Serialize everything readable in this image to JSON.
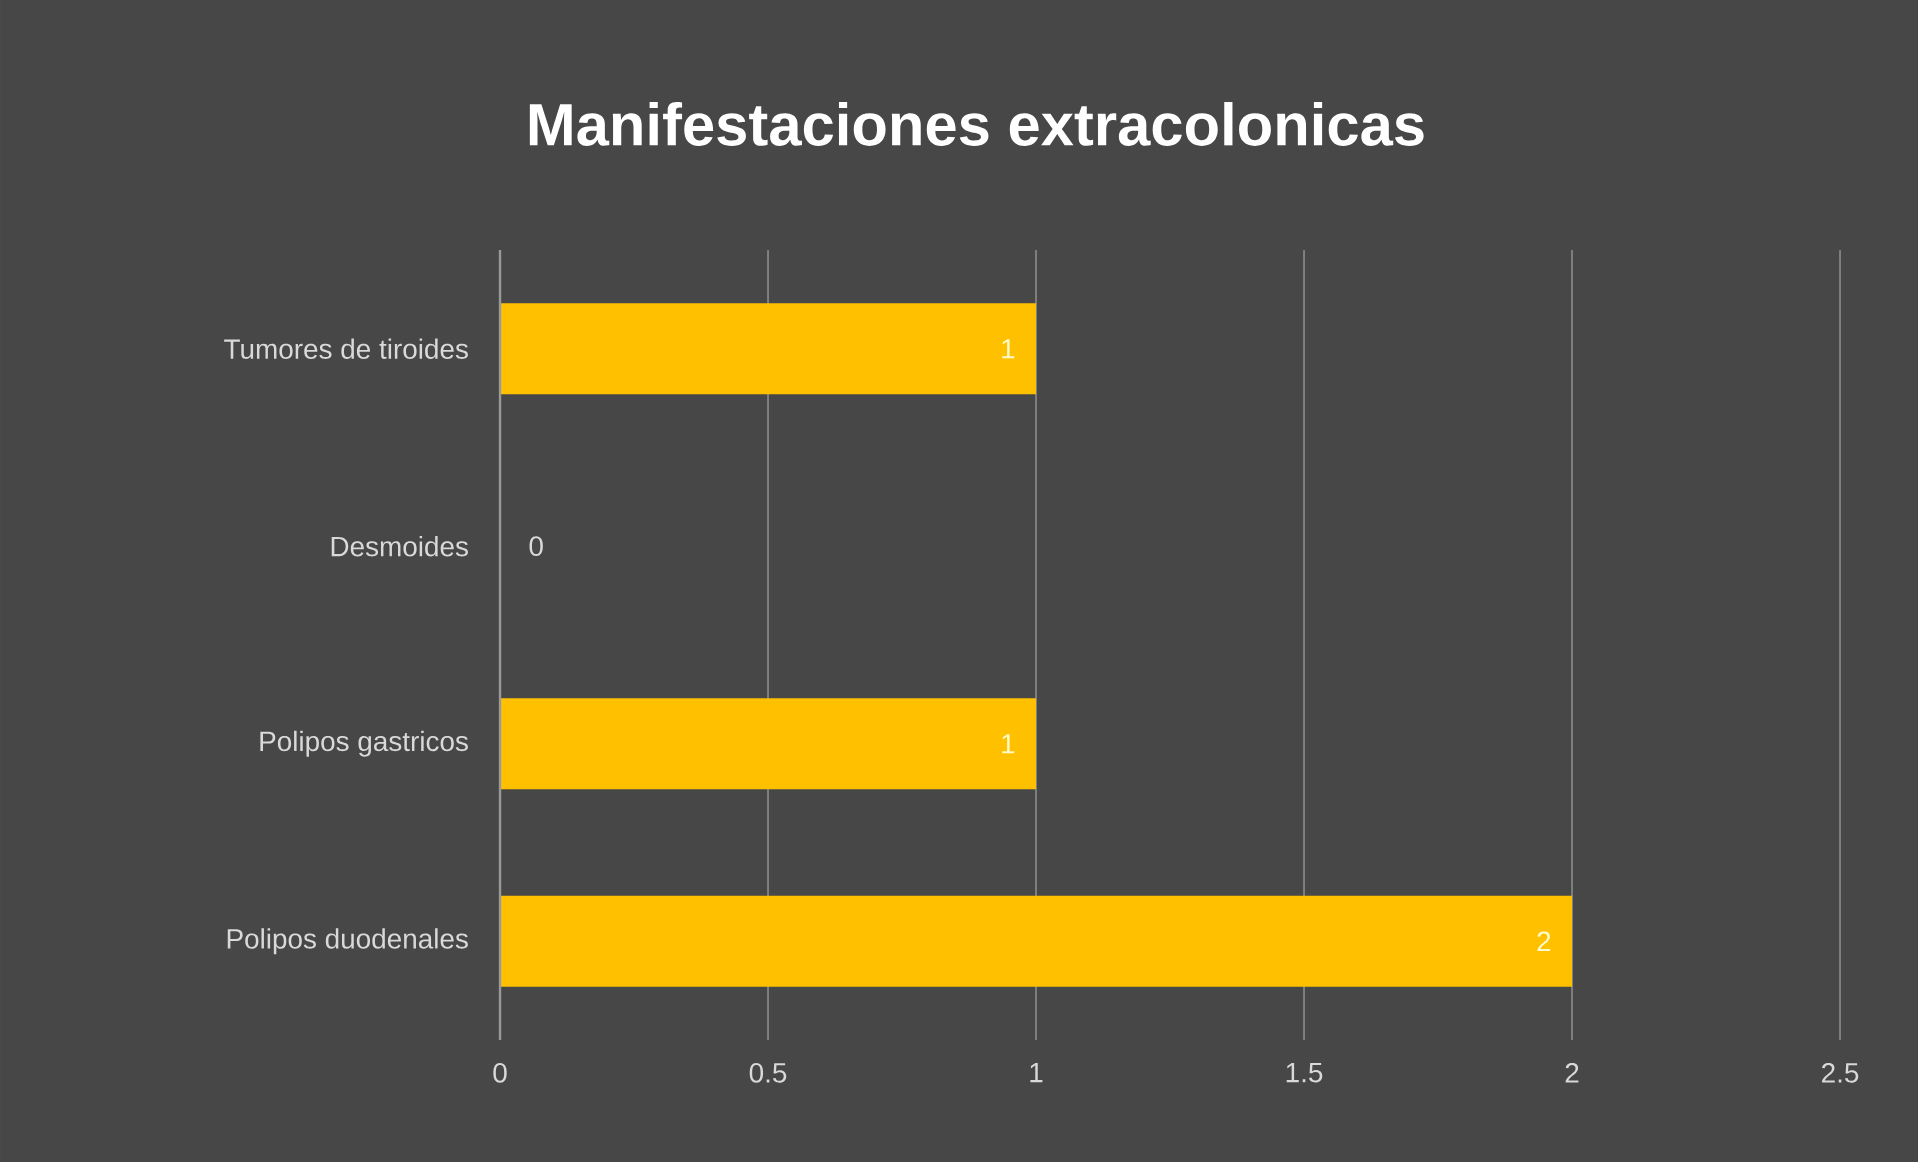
{
  "chart_data": {
    "type": "bar",
    "orientation": "horizontal",
    "title": "Manifestaciones extracolonicas",
    "categories": [
      "Tumores  de tiroides",
      "Desmoides",
      "Polipos gastricos",
      "Polipos duodenales"
    ],
    "values": [
      1,
      0,
      1,
      2
    ],
    "color": "#ffc000",
    "xlim": [
      0,
      2.5
    ],
    "xticks": [
      0,
      0.5,
      1,
      1.5,
      2,
      2.5
    ],
    "grid": "x",
    "data_labels": true
  }
}
